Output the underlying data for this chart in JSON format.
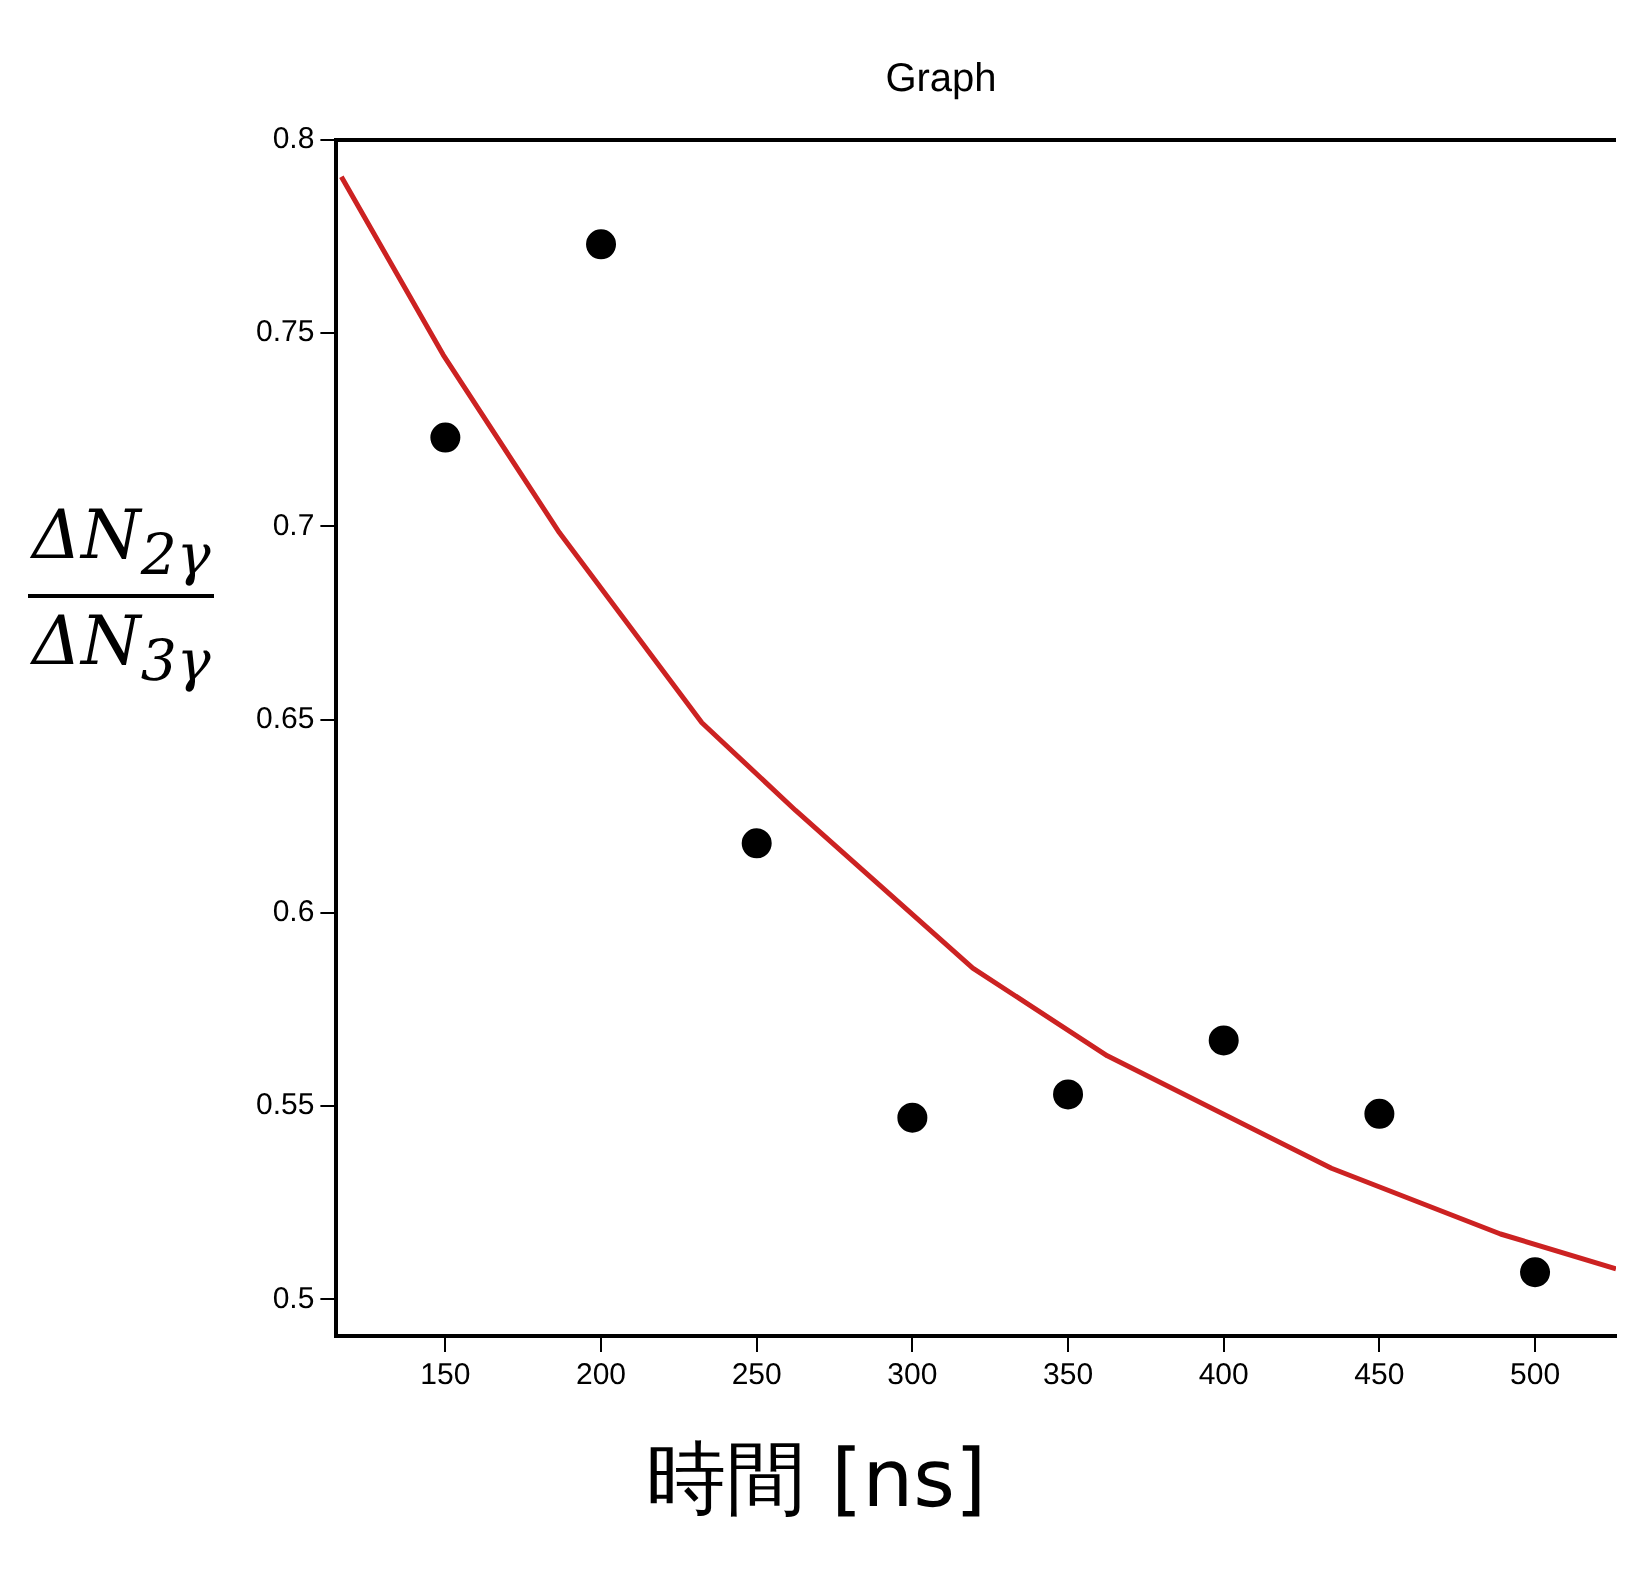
{
  "chart_data": {
    "type": "scatter",
    "title": "Graph",
    "xlabel": "時間 [ns]",
    "ylabel": "ΔN$_{2γ}$ ΔN$_{3γ}$",
    "xlim": [
      115,
      526
    ],
    "xticks": [
      150,
      200,
      250,
      300,
      350,
      400,
      450,
      500
    ],
    "ylim": [
      0.4905,
      0.8
    ],
    "yticks": [
      0.5,
      0.55,
      0.6,
      0.65,
      0.7,
      0.75,
      0.8
    ],
    "grid": false,
    "legend": false,
    "series": [
      {
        "type": "scatter",
        "color": "#000000",
        "marker": "circle",
        "x": [
          150,
          200,
          250,
          300,
          350,
          400,
          450,
          500
        ],
        "values": [
          0.723,
          0.773,
          0.618,
          0.547,
          0.553,
          0.567,
          0.548,
          0.507
        ]
      },
      {
        "type": "line",
        "color": "#cc2222",
        "marker": "none",
        "line_style": "solid",
        "x": [
          116.6,
          149.3,
          186.6,
          232.4,
          262.5,
          319.4,
          362.6,
          434.6,
          488.9,
          526
        ],
        "values": [
          0.7905,
          0.7444,
          0.6984,
          0.6492,
          0.6265,
          0.5857,
          0.563,
          0.5339,
          0.5169,
          0.5079
        ]
      }
    ]
  }
}
